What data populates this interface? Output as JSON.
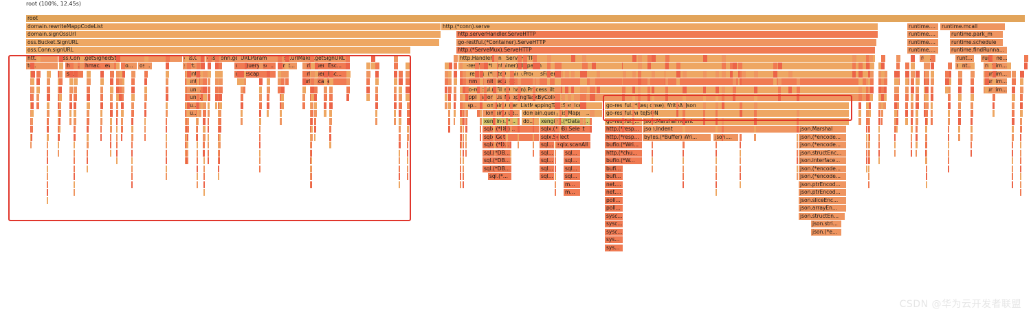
{
  "header": {
    "summary": "root (100%, 12.45s)"
  },
  "watermark": "CSDN @华为云开发者联盟",
  "colors": {
    "root": "#e2a45a",
    "warm1": "#eea763",
    "warm2": "#ef9560",
    "warm3": "#f07a52",
    "warm4": "#ec6448",
    "yellow": "#d6c469",
    "highlight": "#e0352b"
  },
  "frames": [
    {
      "label": "root",
      "tone": "root",
      "depth": 0
    },
    {
      "label": "domain.rewriteMappCodeList",
      "tone": "warm1",
      "depth": 1
    },
    {
      "label": "domain.signOssUrl",
      "tone": "warm1",
      "depth": 2
    },
    {
      "label": "oss.Bucket.SignURL",
      "tone": "warm1",
      "depth": 3
    },
    {
      "label": "oss.Conn.signURL",
      "tone": "warm1",
      "depth": 4
    },
    {
      "label": "htt...",
      "tone": "warm2",
      "depth": 5
    },
    {
      "label": "oss.Conn.getSignedStr",
      "tone": "warm2",
      "depth": 5
    },
    {
      "label": "oss.C...",
      "tone": "warm2",
      "depth": 5
    },
    {
      "label": "oss.Conn.getURLParams",
      "tone": "warm2",
      "depth": 5
    },
    {
      "label": "oss.urlMaker.getSignURL",
      "tone": "warm2",
      "depth": 5
    },
    {
      "label": "te...",
      "tone": "warm2",
      "depth": 6
    },
    {
      "label": "hma...",
      "tone": "warm3",
      "depth": 6
    },
    {
      "label": "hmac.New",
      "tone": "warm3",
      "depth": 6
    },
    {
      "label": "io...",
      "tone": "warm2",
      "depth": 6
    },
    {
      "label": "os...",
      "tone": "warm2",
      "depth": 6
    },
    {
      "label": "sort...",
      "tone": "warm2",
      "depth": 6
    },
    {
      "label": "url.QueryEsc...",
      "tone": "warm3",
      "depth": 6
    },
    {
      "label": "fmt...",
      "tone": "warm2",
      "depth": 6
    },
    {
      "label": "url.QueryEsc...",
      "tone": "warm3",
      "depth": 6
    },
    {
      "label": "sh...",
      "tone": "warm3",
      "depth": 7
    },
    {
      "label": "runti...",
      "tone": "warm2",
      "depth": 7
    },
    {
      "label": "url.escape",
      "tone": "warm3",
      "depth": 7
    },
    {
      "label": "url.QueryEsc...",
      "tone": "warm3",
      "depth": 7
    },
    {
      "label": "runt...",
      "tone": "warm2",
      "depth": 8
    },
    {
      "label": "url.escape",
      "tone": "warm3",
      "depth": 8
    },
    {
      "label": "run...",
      "tone": "warm2",
      "depth": 9
    },
    {
      "label": "run...",
      "tone": "warm2",
      "depth": 10
    },
    {
      "label": "ru...",
      "tone": "warm2",
      "depth": 11
    },
    {
      "label": "ru...",
      "tone": "warm2",
      "depth": 12
    },
    {
      "label": "http.(*conn).serve",
      "tone": "warm1",
      "depth": 1
    },
    {
      "label": "http.serverHandler.ServeHTTP",
      "tone": "warm3",
      "depth": 2
    },
    {
      "label": "go-restful.(*Container).ServeHTTP",
      "tone": "warm2",
      "depth": 3
    },
    {
      "label": "http.(*ServeMux).ServeHTTP",
      "tone": "warm3",
      "depth": 4
    },
    {
      "label": "http.HandlerFunc.ServeHTTP",
      "tone": "warm1",
      "depth": 5
    },
    {
      "label": "go-restful.(*Container).dispatch",
      "tone": "warm1",
      "depth": 6
    },
    {
      "label": "go-restful.(*FilterChain).ProcessFilter",
      "tone": "warm1",
      "depth": 7
    },
    {
      "label": "common.InitRequest",
      "tone": "warm3",
      "depth": 8
    },
    {
      "label": "go-restful.(*FilterChain).ProcessFilter",
      "tone": "warm1",
      "depth": 9
    },
    {
      "label": "application.ListMappingTaskByCollect",
      "tone": "warm2",
      "depth": 10
    },
    {
      "label": "ap...",
      "tone": "warm2",
      "depth": 11
    },
    {
      "label": "domain.QueryListMappingTaskService",
      "tone": "warm1",
      "depth": 11
    },
    {
      "label": "go-restful.(*Response).WriteAsJson",
      "tone": "warm1",
      "depth": 11
    },
    {
      "label": "domain.que...",
      "tone": "warm2",
      "depth": 12
    },
    {
      "label": "domain.queryListMappT...",
      "tone": "warm1",
      "depth": 12
    },
    {
      "label": "go-restful.writeJSON",
      "tone": "warm1",
      "depth": 12
    },
    {
      "label": "xengine.(*...",
      "tone": "yellow",
      "depth": 13
    },
    {
      "label": "do...",
      "tone": "warm1",
      "depth": 13
    },
    {
      "label": "xengine.(*Datab...",
      "tone": "yellow",
      "depth": 13
    },
    {
      "label": "go-restful.(...",
      "tone": "warm1",
      "depth": 13
    },
    {
      "label": "json.MarshalIndent",
      "tone": "warm1",
      "depth": 13
    },
    {
      "label": "sqlx.(*DB)...",
      "tone": "warm3",
      "depth": 14
    },
    {
      "label": "sqlx.(*DB).Select",
      "tone": "warm3",
      "depth": 14
    },
    {
      "label": "http.(*resp...",
      "tone": "warm3",
      "depth": 14
    },
    {
      "label": "json.Indent",
      "tone": "warm2",
      "depth": 14
    },
    {
      "label": "json.Marshal",
      "tone": "warm2",
      "depth": 14
    },
    {
      "label": "sqlx.Get",
      "tone": "warm3",
      "depth": 15
    },
    {
      "label": "sqlx.Select",
      "tone": "warm3",
      "depth": 15
    },
    {
      "label": "http.(*resp...",
      "tone": "warm3",
      "depth": 15
    },
    {
      "label": "bytes.(*Buffer).Wri...",
      "tone": "warm2",
      "depth": 15
    },
    {
      "label": "json....",
      "tone": "warm2",
      "depth": 15
    },
    {
      "label": "json.(*encode...",
      "tone": "warm2",
      "depth": 15
    },
    {
      "label": "sqlx.(*D...",
      "tone": "warm3",
      "depth": 16
    },
    {
      "label": "sql...",
      "tone": "warm3",
      "depth": 16
    },
    {
      "label": "sqlx.scanAll",
      "tone": "warm3",
      "depth": 16
    },
    {
      "label": "bufio.(*Wri...",
      "tone": "warm3",
      "depth": 16
    },
    {
      "label": "json.(*encode...",
      "tone": "warm2",
      "depth": 16
    },
    {
      "label": "sql.(*DB...",
      "tone": "warm3",
      "depth": 17
    },
    {
      "label": "sql...",
      "tone": "warm3",
      "depth": 17
    },
    {
      "label": "sql...",
      "tone": "warm3",
      "depth": 17
    },
    {
      "label": "http.(*chu...",
      "tone": "warm3",
      "depth": 17
    },
    {
      "label": "json.structEnc...",
      "tone": "warm2",
      "depth": 17
    },
    {
      "label": "sql.(*DB...",
      "tone": "warm3",
      "depth": 18
    },
    {
      "label": "sql...",
      "tone": "warm3",
      "depth": 18
    },
    {
      "label": "sql...",
      "tone": "warm3",
      "depth": 18
    },
    {
      "label": "bufio.(*W...",
      "tone": "warm3",
      "depth": 18
    },
    {
      "label": "json.interface...",
      "tone": "warm2",
      "depth": 18
    },
    {
      "label": "sql.(*DB...",
      "tone": "warm3",
      "depth": 19
    },
    {
      "label": "sql...",
      "tone": "warm3",
      "depth": 19
    },
    {
      "label": "sql...",
      "tone": "warm3",
      "depth": 19
    },
    {
      "label": "bufi...",
      "tone": "warm3",
      "depth": 19
    },
    {
      "label": "json.(*encode...",
      "tone": "warm2",
      "depth": 19
    },
    {
      "label": "sql.(*...",
      "tone": "warm3",
      "depth": 20
    },
    {
      "label": "sql...",
      "tone": "warm3",
      "depth": 20
    },
    {
      "label": "sql...",
      "tone": "warm3",
      "depth": 20
    },
    {
      "label": "bufi...",
      "tone": "warm3",
      "depth": 20
    },
    {
      "label": "json.(*encode...",
      "tone": "warm2",
      "depth": 20
    },
    {
      "label": "m...",
      "tone": "warm3",
      "depth": 21
    },
    {
      "label": "net....",
      "tone": "warm3",
      "depth": 21
    },
    {
      "label": "json.ptrEncod...",
      "tone": "warm2",
      "depth": 21
    },
    {
      "label": "m...",
      "tone": "warm3",
      "depth": 22
    },
    {
      "label": "net....",
      "tone": "warm3",
      "depth": 22
    },
    {
      "label": "json.ptrEncod...",
      "tone": "warm2",
      "depth": 22
    },
    {
      "label": "poll...",
      "tone": "warm3",
      "depth": 23
    },
    {
      "label": "json.sliceEnc...",
      "tone": "warm2",
      "depth": 23
    },
    {
      "label": "poll...",
      "tone": "warm3",
      "depth": 24
    },
    {
      "label": "json.arrayEn...",
      "tone": "warm2",
      "depth": 24
    },
    {
      "label": "sysc...",
      "tone": "warm3",
      "depth": 25
    },
    {
      "label": "json.structEn...",
      "tone": "warm2",
      "depth": 25
    },
    {
      "label": "sysc...",
      "tone": "warm3",
      "depth": 26
    },
    {
      "label": "json.stri...",
      "tone": "warm2",
      "depth": 26
    },
    {
      "label": "sysc...",
      "tone": "warm3",
      "depth": 27
    },
    {
      "label": "json.(*e...",
      "tone": "warm2",
      "depth": 27
    },
    {
      "label": "sys...",
      "tone": "warm3",
      "depth": 28
    },
    {
      "label": "sys...",
      "tone": "warm3",
      "depth": 29
    },
    {
      "label": "runtime....",
      "tone": "warm2",
      "depth": 1
    },
    {
      "label": "runtime.mcall",
      "tone": "warm2",
      "depth": 1
    },
    {
      "label": "runtime....",
      "tone": "warm2",
      "depth": 2
    },
    {
      "label": "runtime.park_m",
      "tone": "warm2",
      "depth": 2
    },
    {
      "label": "runtime....",
      "tone": "warm2",
      "depth": 3
    },
    {
      "label": "runtime.schedule",
      "tone": "warm2",
      "depth": 3
    },
    {
      "label": "runtime....",
      "tone": "warm2",
      "depth": 4
    },
    {
      "label": "runtime.findRunna...",
      "tone": "warm2",
      "depth": 4
    },
    {
      "label": "run...",
      "tone": "warm2",
      "depth": 5
    },
    {
      "label": "runt...",
      "tone": "warm2",
      "depth": 5
    },
    {
      "label": "runtime...",
      "tone": "warm2",
      "depth": 5
    },
    {
      "label": "runt...",
      "tone": "warm2",
      "depth": 6
    },
    {
      "label": "runtim...",
      "tone": "warm2",
      "depth": 6
    },
    {
      "label": "runtim...",
      "tone": "warm2",
      "depth": 7
    },
    {
      "label": "runtim...",
      "tone": "warm2",
      "depth": 8
    },
    {
      "label": "runtim...",
      "tone": "warm2",
      "depth": 9
    }
  ]
}
